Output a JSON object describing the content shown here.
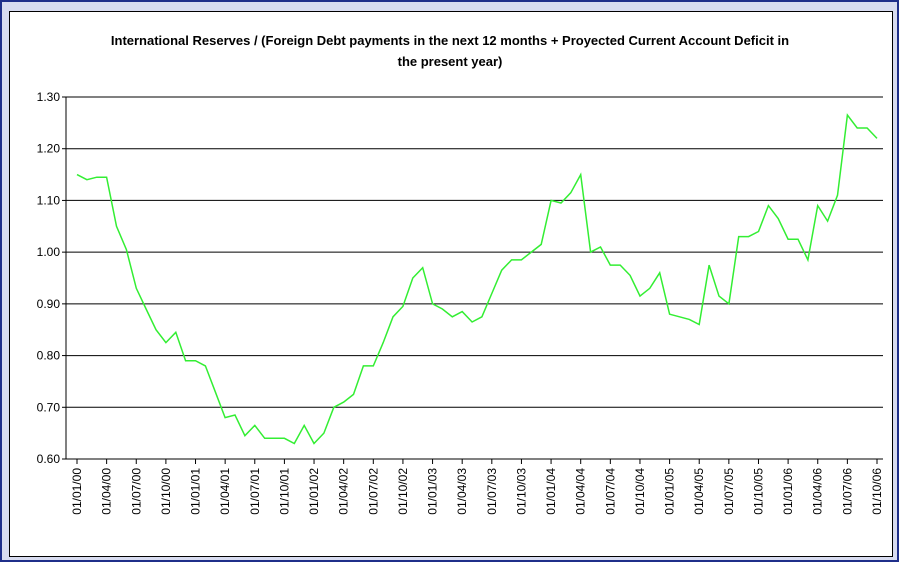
{
  "chart_data": {
    "type": "line",
    "title": "International Reserves / (Foreign  Debt payments in the next 12 months + Proyected Current Account Deficit in the present year)",
    "categories": [
      "01/01/00",
      null,
      null,
      "01/04/00",
      null,
      null,
      "01/07/00",
      null,
      null,
      "01/10/00",
      null,
      null,
      "01/01/01",
      null,
      null,
      "01/04/01",
      null,
      null,
      "01/07/01",
      null,
      null,
      "01/10/01",
      null,
      null,
      "01/01/02",
      null,
      null,
      "01/04/02",
      null,
      null,
      "01/07/02",
      null,
      null,
      "01/10/02",
      null,
      null,
      "01/01/03",
      null,
      null,
      "01/04/03",
      null,
      null,
      "01/07/03",
      null,
      null,
      "01/10/03",
      null,
      null,
      "01/01/04",
      null,
      null,
      "01/04/04",
      null,
      null,
      "01/07/04",
      null,
      null,
      "01/10/04",
      null,
      null,
      "01/01/05",
      null,
      null,
      "01/04/05",
      null,
      null,
      "01/07/05",
      null,
      null,
      "01/10/05",
      null,
      null,
      "01/01/06",
      null,
      null,
      "01/04/06",
      null,
      null,
      "01/07/06",
      null,
      null,
      "01/10/06"
    ],
    "series": [
      {
        "color": "#33ee33",
        "values": [
          1.15,
          1.14,
          1.145,
          1.145,
          1.05,
          1.005,
          0.93,
          0.89,
          0.85,
          0.825,
          0.845,
          0.79,
          0.79,
          0.78,
          0.73,
          0.68,
          0.685,
          0.645,
          0.665,
          0.64,
          0.64,
          0.64,
          0.63,
          0.665,
          0.63,
          0.65,
          0.7,
          0.71,
          0.725,
          0.78,
          0.78,
          0.825,
          0.875,
          0.895,
          0.95,
          0.97,
          0.9,
          0.89,
          0.875,
          0.885,
          0.865,
          0.875,
          0.92,
          0.965,
          0.985,
          0.985,
          1.0,
          1.015,
          1.1,
          1.095,
          1.115,
          1.15,
          1.0,
          1.01,
          0.975,
          0.975,
          0.955,
          0.915,
          0.93,
          0.96,
          0.88,
          0.875,
          0.87,
          0.86,
          0.975,
          0.915,
          0.9,
          1.03,
          1.03,
          1.04,
          1.09,
          1.065,
          1.025,
          1.025,
          0.985,
          1.09,
          1.06,
          1.11,
          1.265,
          1.24,
          1.24,
          1.22
        ]
      }
    ],
    "ylim": [
      0.6,
      1.3
    ],
    "yticks": [
      {
        "value": 0.6,
        "label": "0.60"
      },
      {
        "value": 0.7,
        "label": "0.70"
      },
      {
        "value": 0.8,
        "label": "0.80"
      },
      {
        "value": 0.9,
        "label": "0.90"
      },
      {
        "value": 1.0,
        "label": "1.00"
      },
      {
        "value": 1.1,
        "label": "1.10"
      },
      {
        "value": 1.2,
        "label": "1.20"
      },
      {
        "value": 1.3,
        "label": "1.30"
      }
    ],
    "grid": true
  }
}
